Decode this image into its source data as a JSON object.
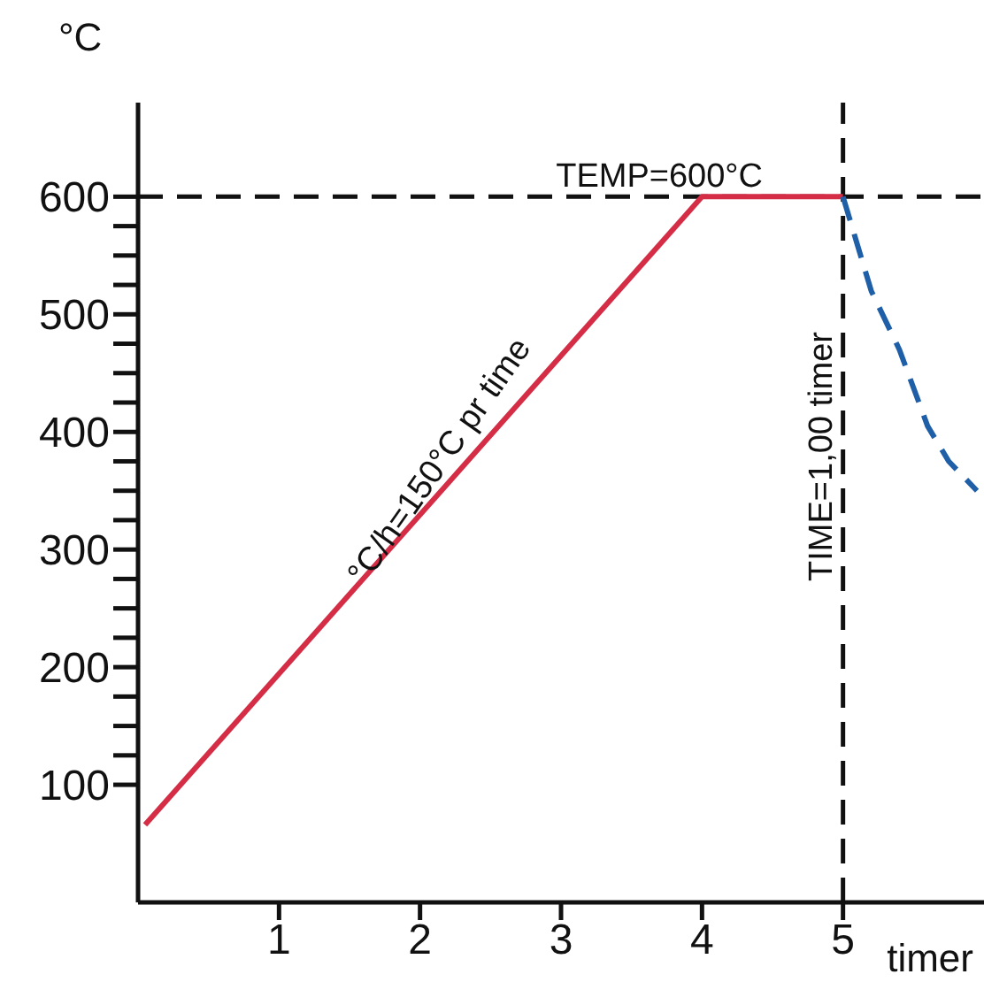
{
  "chart_data": {
    "type": "line",
    "ylabel": "°C",
    "xlabel": "timer",
    "xlim": [
      0,
      6
    ],
    "xticks": [
      1,
      2,
      3,
      4,
      5
    ],
    "ylim": [
      0,
      680
    ],
    "yticks": [
      100,
      {
        "value": 125,
        "label": null
      },
      {
        "value": 150,
        "label": null
      },
      {
        "value": 175,
        "label": null
      },
      200,
      {
        "value": 225,
        "label": null
      },
      {
        "value": 250,
        "label": null
      },
      {
        "value": 275,
        "label": null
      },
      300,
      {
        "value": 325,
        "label": null
      },
      {
        "value": 350,
        "label": null
      },
      {
        "value": 375,
        "label": null
      },
      400,
      {
        "value": 425,
        "label": null
      },
      {
        "value": 450,
        "label": null
      },
      {
        "value": 475,
        "label": null
      },
      500,
      {
        "value": 525,
        "label": null
      },
      {
        "value": 550,
        "label": null
      },
      {
        "value": 575,
        "label": null
      },
      600
    ],
    "series": [
      {
        "color": "#d42d45",
        "line_style": "solid",
        "x": [
          0.05,
          4,
          5
        ],
        "values": [
          66,
          600,
          600
        ]
      },
      {
        "color": "#1f5fa8",
        "line_style": "dashed",
        "x": [
          5,
          5.1,
          5.2,
          5.4,
          5.6,
          5.75,
          5.95
        ],
        "values": [
          600,
          560,
          520,
          470,
          405,
          375,
          350
        ]
      }
    ],
    "ref_lines": [
      {
        "axis": "y",
        "value": 600,
        "label": "TEMP=600°C",
        "line_style": "dashed"
      },
      {
        "axis": "x",
        "value": 5,
        "line_style": "dashed"
      }
    ],
    "annotations": [
      {
        "text": "°C/h=150°C pr time",
        "x": 2.2,
        "y": 370
      },
      "TIME=1,00 timer"
    ],
    "grid": false,
    "legend": false,
    "marker": "none"
  }
}
